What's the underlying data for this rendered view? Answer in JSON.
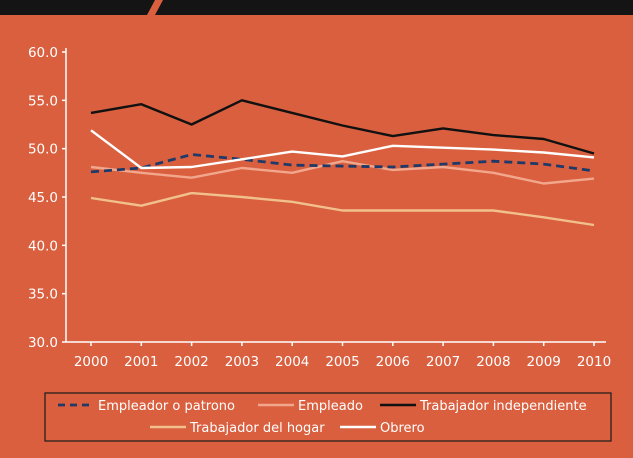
{
  "colors": {
    "panel_background": "#d95f3f",
    "header_bar": "#141414",
    "page_background": "#ffffff",
    "axis": "#ffffff",
    "legend_border": "#1a1a1a"
  },
  "chart_data": {
    "type": "line",
    "title": "",
    "xlabel": "",
    "ylabel": "",
    "x": [
      "2000",
      "2001",
      "2002",
      "2003",
      "2004",
      "2005",
      "2006",
      "2007",
      "2008",
      "2009",
      "2010"
    ],
    "y_ticks": [
      "60.0",
      "55.0",
      "50.0",
      "45.0",
      "40.0",
      "35.0",
      "30.0"
    ],
    "ylim": [
      30,
      60
    ],
    "grid": false,
    "legend_position": "bottom",
    "series": [
      {
        "name": "Empleador o patrono",
        "color": "#1f3a68",
        "dash": "dashed",
        "values": [
          47.6,
          48.0,
          49.4,
          48.9,
          48.3,
          48.2,
          48.1,
          48.4,
          48.7,
          48.4,
          47.7
        ]
      },
      {
        "name": "Empleado",
        "color": "#f2a68b",
        "dash": "solid",
        "values": [
          48.1,
          47.5,
          47.0,
          48.0,
          47.5,
          48.7,
          47.8,
          48.1,
          47.5,
          46.4,
          46.9
        ]
      },
      {
        "name": "Trabajador independiente",
        "color": "#111111",
        "dash": "solid",
        "values": [
          53.7,
          54.6,
          52.5,
          55.0,
          53.7,
          52.4,
          51.3,
          52.1,
          51.4,
          51.0,
          49.5
        ]
      },
      {
        "name": "Trabajador del hogar",
        "color": "#f1c08c",
        "dash": "solid",
        "values": [
          44.9,
          44.1,
          45.4,
          45.0,
          44.5,
          43.6,
          43.6,
          43.6,
          43.6,
          42.9,
          42.1
        ]
      },
      {
        "name": "Obrero",
        "color": "#ffffff",
        "dash": "solid",
        "values": [
          51.9,
          48.0,
          48.1,
          48.9,
          49.7,
          49.2,
          50.3,
          50.1,
          49.9,
          49.6,
          49.1
        ]
      }
    ]
  }
}
